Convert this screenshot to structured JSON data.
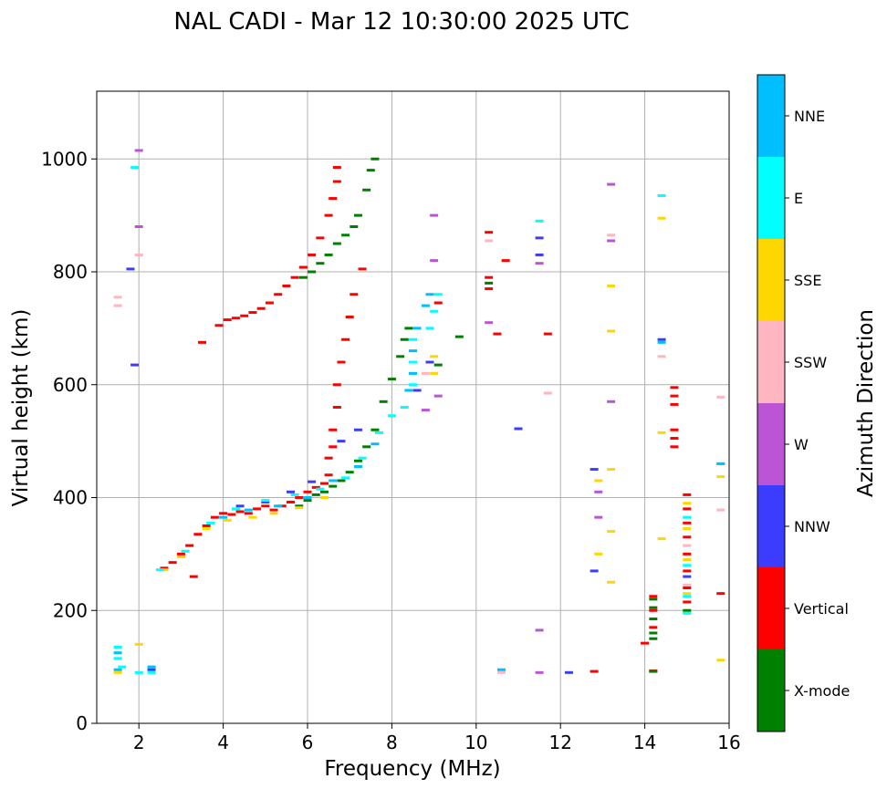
{
  "chart_data": {
    "type": "scatter",
    "title": "NAL CADI - Mar 12 10:30:00 2025 UTC",
    "xlabel": "Frequency (MHz)",
    "ylabel": "Virtual height (km)",
    "xlim": [
      1,
      16
    ],
    "ylim": [
      0,
      1120
    ],
    "xticks": [
      2,
      4,
      6,
      8,
      10,
      12,
      14,
      16
    ],
    "yticks": [
      0,
      200,
      400,
      600,
      800,
      1000
    ],
    "grid": true,
    "colorbar": {
      "label": "Azimuth Direction",
      "categories": [
        {
          "name": "X-mode",
          "color": "#008000"
        },
        {
          "name": "Vertical",
          "color": "#ff0000"
        },
        {
          "name": "NNW",
          "color": "#3c3cff"
        },
        {
          "name": "W",
          "color": "#bb55d6"
        },
        {
          "name": "SSW",
          "color": "#ffb6c1"
        },
        {
          "name": "SSE",
          "color": "#ffd700"
        },
        {
          "name": "E",
          "color": "#00ffff"
        },
        {
          "name": "NNE",
          "color": "#00bfff"
        }
      ]
    },
    "series": [
      {
        "name": "Vertical",
        "color": "#ff0000",
        "points": [
          [
            2.6,
            275
          ],
          [
            2.8,
            285
          ],
          [
            3.0,
            300
          ],
          [
            3.2,
            315
          ],
          [
            3.4,
            335
          ],
          [
            3.6,
            350
          ],
          [
            3.8,
            365
          ],
          [
            4.0,
            372
          ],
          [
            4.2,
            370
          ],
          [
            4.4,
            375
          ],
          [
            4.6,
            372
          ],
          [
            4.8,
            380
          ],
          [
            5.0,
            385
          ],
          [
            5.2,
            378
          ],
          [
            5.4,
            385
          ],
          [
            5.6,
            392
          ],
          [
            5.8,
            400
          ],
          [
            6.0,
            410
          ],
          [
            6.2,
            418
          ],
          [
            6.4,
            425
          ],
          [
            6.5,
            440
          ],
          [
            6.5,
            470
          ],
          [
            6.6,
            490
          ],
          [
            6.6,
            520
          ],
          [
            6.7,
            560
          ],
          [
            6.7,
            600
          ],
          [
            6.8,
            640
          ],
          [
            6.9,
            680
          ],
          [
            7.0,
            720
          ],
          [
            7.1,
            760
          ],
          [
            3.3,
            260
          ],
          [
            3.5,
            675
          ],
          [
            3.9,
            705
          ],
          [
            4.1,
            715
          ],
          [
            4.3,
            718
          ],
          [
            4.5,
            722
          ],
          [
            4.7,
            728
          ],
          [
            4.9,
            735
          ],
          [
            5.1,
            745
          ],
          [
            5.3,
            760
          ],
          [
            5.5,
            775
          ],
          [
            5.7,
            790
          ],
          [
            5.9,
            808
          ],
          [
            6.1,
            830
          ],
          [
            6.3,
            860
          ],
          [
            6.5,
            900
          ],
          [
            6.6,
            930
          ],
          [
            6.7,
            960
          ],
          [
            6.7,
            985
          ],
          [
            7.3,
            805
          ],
          [
            9.1,
            745
          ],
          [
            10.3,
            870
          ],
          [
            10.3,
            790
          ],
          [
            10.3,
            770
          ],
          [
            10.5,
            690
          ],
          [
            10.7,
            820
          ],
          [
            11.7,
            690
          ],
          [
            12.8,
            92
          ],
          [
            14.0,
            142
          ],
          [
            14.2,
            93
          ],
          [
            14.2,
            225
          ],
          [
            14.2,
            200
          ],
          [
            14.2,
            170
          ],
          [
            15.0,
            405
          ],
          [
            15.0,
            380
          ],
          [
            15.0,
            355
          ],
          [
            15.0,
            330
          ],
          [
            15.0,
            300
          ],
          [
            15.0,
            270
          ],
          [
            15.0,
            240
          ],
          [
            15.0,
            215
          ],
          [
            14.7,
            595
          ],
          [
            14.7,
            580
          ],
          [
            14.7,
            565
          ],
          [
            14.7,
            520
          ],
          [
            14.7,
            505
          ],
          [
            14.7,
            490
          ],
          [
            15.8,
            230
          ]
        ]
      },
      {
        "name": "X-mode",
        "color": "#008000",
        "points": [
          [
            5.8,
            385
          ],
          [
            6.0,
            395
          ],
          [
            6.2,
            405
          ],
          [
            6.4,
            410
          ],
          [
            6.6,
            420
          ],
          [
            6.8,
            430
          ],
          [
            7.0,
            445
          ],
          [
            7.2,
            465
          ],
          [
            7.4,
            490
          ],
          [
            7.6,
            520
          ],
          [
            7.8,
            570
          ],
          [
            8.0,
            610
          ],
          [
            8.2,
            650
          ],
          [
            8.3,
            680
          ],
          [
            8.4,
            700
          ],
          [
            9.1,
            635
          ],
          [
            5.9,
            790
          ],
          [
            6.1,
            800
          ],
          [
            6.3,
            815
          ],
          [
            6.5,
            830
          ],
          [
            6.7,
            850
          ],
          [
            6.9,
            865
          ],
          [
            7.1,
            880
          ],
          [
            7.2,
            900
          ],
          [
            7.4,
            945
          ],
          [
            7.5,
            980
          ],
          [
            7.6,
            1000
          ],
          [
            9.6,
            685
          ],
          [
            10.3,
            780
          ],
          [
            14.2,
            220
          ],
          [
            14.2,
            205
          ],
          [
            14.2,
            185
          ],
          [
            14.2,
            160
          ],
          [
            14.2,
            150
          ],
          [
            14.2,
            92
          ],
          [
            15.0,
            200
          ]
        ]
      },
      {
        "name": "NNW",
        "color": "#3c3cff",
        "points": [
          [
            4.4,
            385
          ],
          [
            5.0,
            392
          ],
          [
            5.6,
            410
          ],
          [
            6.1,
            428
          ],
          [
            6.8,
            500
          ],
          [
            7.2,
            520
          ],
          [
            1.8,
            805
          ],
          [
            1.9,
            635
          ],
          [
            8.9,
            640
          ],
          [
            8.6,
            590
          ],
          [
            11.0,
            522
          ],
          [
            11.5,
            860
          ],
          [
            11.5,
            830
          ],
          [
            12.8,
            450
          ],
          [
            12.8,
            270
          ],
          [
            14.4,
            680
          ],
          [
            15.0,
            260
          ],
          [
            12.2,
            90
          ],
          [
            2.3,
            95
          ]
        ]
      },
      {
        "name": "W",
        "color": "#bb55d6",
        "points": [
          [
            2.0,
            1015
          ],
          [
            2.0,
            880
          ],
          [
            9.0,
            900
          ],
          [
            9.0,
            820
          ],
          [
            8.8,
            555
          ],
          [
            9.1,
            580
          ],
          [
            10.3,
            710
          ],
          [
            11.5,
            815
          ],
          [
            11.5,
            165
          ],
          [
            11.5,
            90
          ],
          [
            12.9,
            410
          ],
          [
            12.9,
            365
          ],
          [
            13.2,
            955
          ],
          [
            13.2,
            855
          ],
          [
            13.2,
            570
          ]
        ]
      },
      {
        "name": "SSW",
        "color": "#ffb6c1",
        "points": [
          [
            1.5,
            755
          ],
          [
            1.5,
            740
          ],
          [
            2.0,
            830
          ],
          [
            8.8,
            620
          ],
          [
            10.3,
            855
          ],
          [
            11.7,
            585
          ],
          [
            10.6,
            90
          ],
          [
            13.2,
            865
          ],
          [
            14.4,
            650
          ],
          [
            15.0,
            315
          ],
          [
            15.0,
            245
          ],
          [
            15.8,
            578
          ],
          [
            15.8,
            378
          ]
        ]
      },
      {
        "name": "SSE",
        "color": "#ffd700",
        "points": [
          [
            2.6,
            272
          ],
          [
            3.0,
            295
          ],
          [
            3.6,
            345
          ],
          [
            4.1,
            360
          ],
          [
            4.7,
            365
          ],
          [
            5.2,
            372
          ],
          [
            5.8,
            382
          ],
          [
            6.4,
            400
          ],
          [
            9.0,
            620
          ],
          [
            9.0,
            650
          ],
          [
            12.9,
            430
          ],
          [
            12.9,
            300
          ],
          [
            13.2,
            775
          ],
          [
            13.2,
            695
          ],
          [
            13.2,
            450
          ],
          [
            13.2,
            340
          ],
          [
            13.2,
            250
          ],
          [
            14.4,
            895
          ],
          [
            14.4,
            515
          ],
          [
            14.4,
            327
          ],
          [
            15.0,
            390
          ],
          [
            15.0,
            345
          ],
          [
            15.0,
            290
          ],
          [
            15.0,
            230
          ],
          [
            15.8,
            437
          ],
          [
            15.8,
            112
          ],
          [
            1.5,
            90
          ],
          [
            2.0,
            140
          ]
        ]
      },
      {
        "name": "E",
        "color": "#00ffff",
        "points": [
          [
            2.5,
            272
          ],
          [
            3.1,
            305
          ],
          [
            3.7,
            355
          ],
          [
            4.3,
            380
          ],
          [
            5.0,
            395
          ],
          [
            5.7,
            405
          ],
          [
            6.3,
            415
          ],
          [
            6.9,
            435
          ],
          [
            7.3,
            470
          ],
          [
            7.7,
            515
          ],
          [
            8.0,
            545
          ],
          [
            8.3,
            560
          ],
          [
            8.5,
            600
          ],
          [
            8.5,
            640
          ],
          [
            8.5,
            680
          ],
          [
            8.9,
            700
          ],
          [
            9.0,
            730
          ],
          [
            9.1,
            760
          ],
          [
            1.5,
            135
          ],
          [
            1.5,
            115
          ],
          [
            1.6,
            100
          ],
          [
            1.9,
            985
          ],
          [
            2.0,
            90
          ],
          [
            2.3,
            90
          ],
          [
            11.5,
            890
          ],
          [
            14.4,
            935
          ],
          [
            15.0,
            365
          ],
          [
            15.0,
            280
          ],
          [
            15.0,
            225
          ],
          [
            15.0,
            195
          ],
          [
            15.8,
            460
          ]
        ]
      },
      {
        "name": "NNE",
        "color": "#00bfff",
        "points": [
          [
            4.0,
            365
          ],
          [
            4.6,
            378
          ],
          [
            5.3,
            385
          ],
          [
            6.0,
            400
          ],
          [
            6.6,
            430
          ],
          [
            7.2,
            455
          ],
          [
            7.6,
            495
          ],
          [
            8.4,
            590
          ],
          [
            8.5,
            620
          ],
          [
            8.5,
            660
          ],
          [
            8.6,
            700
          ],
          [
            8.8,
            740
          ],
          [
            8.9,
            760
          ],
          [
            1.5,
            125
          ],
          [
            1.5,
            95
          ],
          [
            2.3,
            100
          ],
          [
            10.6,
            95
          ],
          [
            14.4,
            675
          ],
          [
            15.8,
            460
          ]
        ]
      }
    ]
  }
}
